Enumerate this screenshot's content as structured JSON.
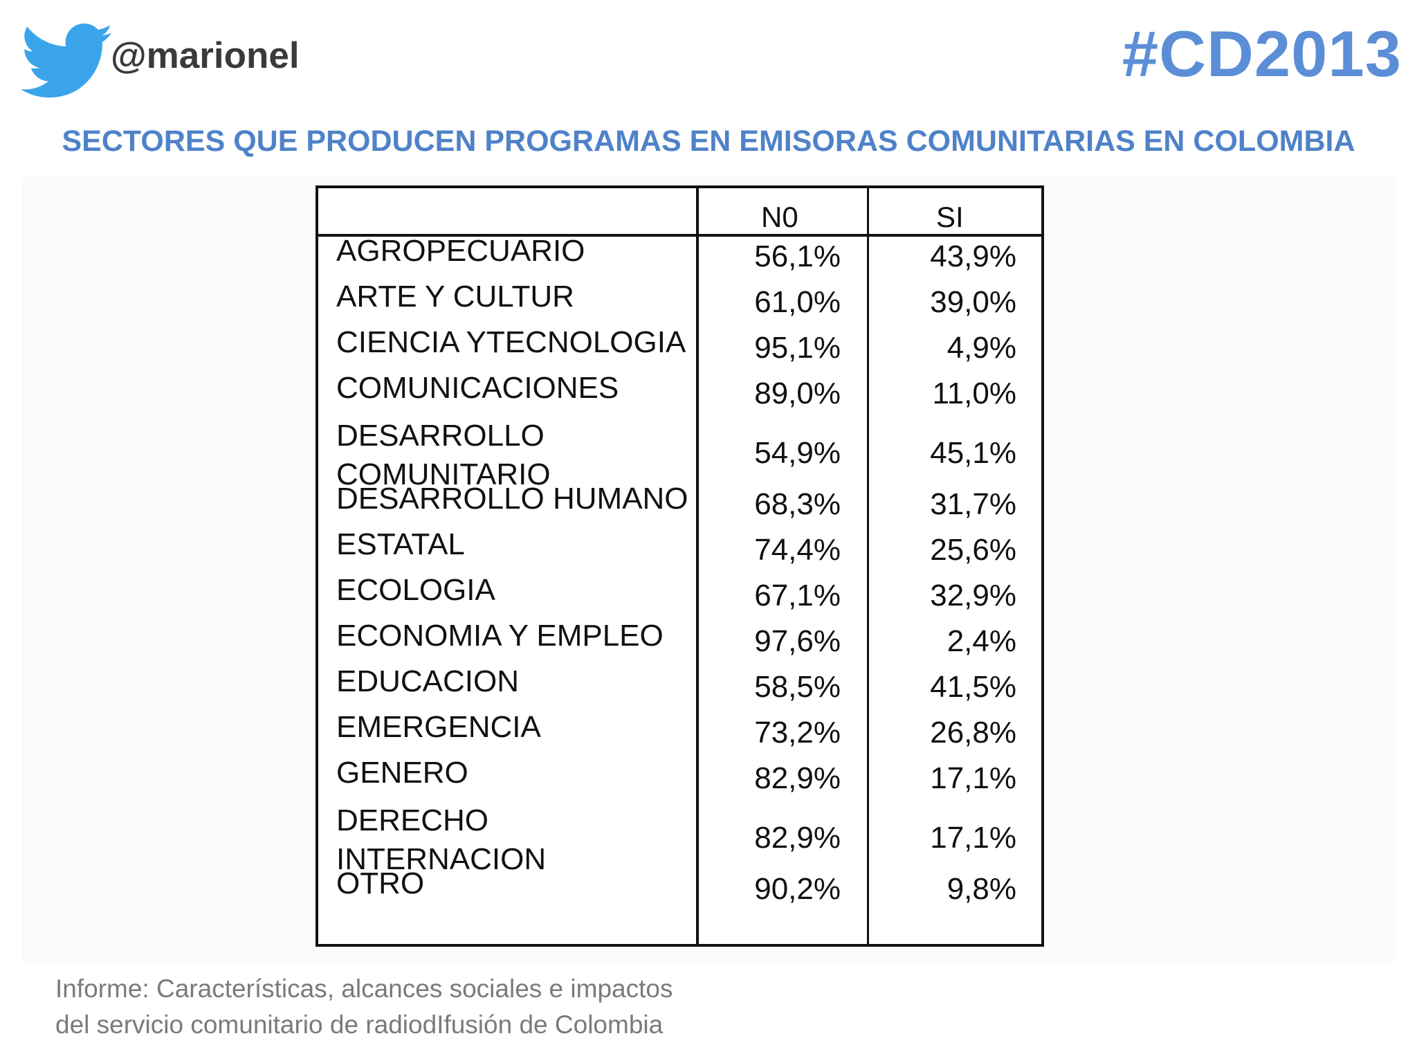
{
  "header": {
    "handle": "@marionel",
    "hashtag": "#CD2013",
    "logo_icon": "twitter-bird-icon",
    "accent_color": "#5b8ed6",
    "twitter_color": "#3aa4ea"
  },
  "title": "SECTORES QUE PRODUCEN PROGRAMAS EN EMISORAS COMUNITARIAS EN COLOMBIA",
  "chart_data": {
    "type": "table",
    "columns": [
      "N0",
      "SI"
    ],
    "rows": [
      {
        "label": "AGROPECUARIO",
        "no": "56,1%",
        "si": "43,9%"
      },
      {
        "label": "ARTE Y CULTUR",
        "no": "61,0%",
        "si": "39,0%"
      },
      {
        "label": "CIENCIA YTECNOLOGIA",
        "no": "95,1%",
        "si": "4,9%"
      },
      {
        "label": "COMUNICACIONES",
        "no": "89,0%",
        "si": "11,0%"
      },
      {
        "label": "DESARROLLO\nCOMUNITARIO",
        "no": "54,9%",
        "si": "45,1%"
      },
      {
        "label": "DESARROLLO HUMANO",
        "no": "68,3%",
        "si": "31,7%"
      },
      {
        "label": "ESTATAL",
        "no": "74,4%",
        "si": "25,6%"
      },
      {
        "label": "ECOLOGIA",
        "no": "67,1%",
        "si": "32,9%"
      },
      {
        "label": "ECONOMIA Y EMPLEO",
        "no": "97,6%",
        "si": "2,4%"
      },
      {
        "label": "EDUCACION",
        "no": "58,5%",
        "si": "41,5%"
      },
      {
        "label": "EMERGENCIA",
        "no": "73,2%",
        "si": "26,8%"
      },
      {
        "label": "GENERO",
        "no": "82,9%",
        "si": "17,1%"
      },
      {
        "label": "DERECHO\nINTERNACION",
        "no": "82,9%",
        "si": "17,1%"
      },
      {
        "label": "OTRO",
        "no": "90,2%",
        "si": "9,8%"
      }
    ]
  },
  "source": {
    "line1": "Informe: Características, alcances sociales e impactos",
    "line2": "del servicio comunitario de radiodIfusión de Colombia"
  }
}
